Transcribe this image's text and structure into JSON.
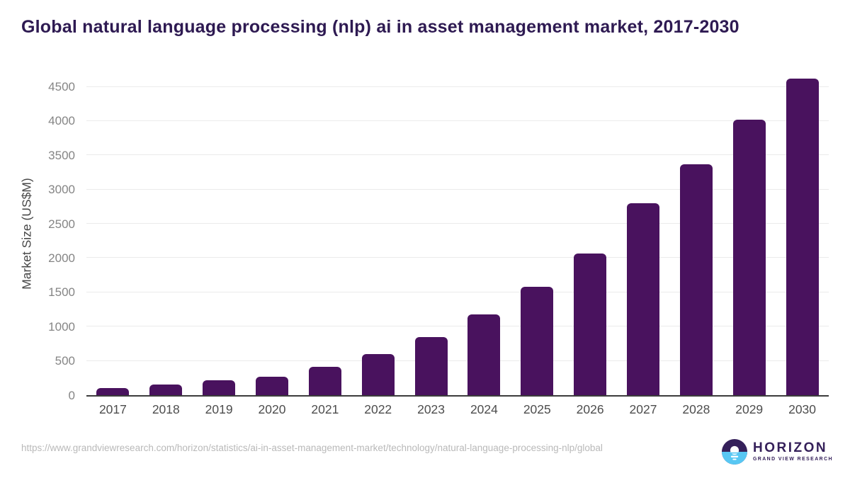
{
  "chart_data": {
    "type": "bar",
    "title": "Global natural language processing (nlp) ai in asset management market, 2017-2030",
    "categories": [
      "2017",
      "2018",
      "2019",
      "2020",
      "2021",
      "2022",
      "2023",
      "2024",
      "2025",
      "2026",
      "2027",
      "2028",
      "2029",
      "2030"
    ],
    "values": [
      100,
      150,
      220,
      265,
      410,
      595,
      850,
      1180,
      1580,
      2065,
      2805,
      3365,
      4020,
      4620
    ],
    "xlabel": "",
    "ylabel": "Market Size (US$M)",
    "ylim": [
      0,
      4700
    ],
    "yticks": [
      0,
      500,
      1000,
      1500,
      2000,
      2500,
      3000,
      3500,
      4000,
      4500
    ],
    "grid": true,
    "legend": false,
    "bar_color": "#49125e"
  },
  "footer": {
    "source_url": "https://www.grandviewresearch.com/horizon/statistics/ai-in-asset-management-market/technology/natural-language-processing-nlp/global",
    "logo": {
      "brand": "HORIZON",
      "sub_brand": "GRAND VIEW RESEARCH"
    }
  },
  "colors": {
    "title": "#2e1a52",
    "bar": "#49125e",
    "logo_purple": "#35205a",
    "logo_blue": "#58c7f3",
    "gridline": "#ebebeb",
    "axis_line": "#3c3c3c"
  }
}
